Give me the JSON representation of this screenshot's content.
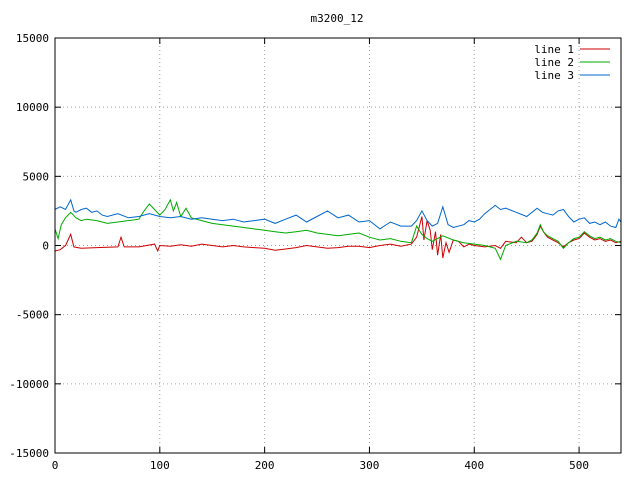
{
  "chart_data": {
    "type": "line",
    "title": "m3200_12",
    "xlabel": "",
    "ylabel": "",
    "xlim": [
      0,
      540
    ],
    "ylim": [
      -15000,
      15000
    ],
    "xticks": [
      0,
      100,
      200,
      300,
      400,
      500
    ],
    "yticks": [
      -15000,
      -10000,
      -5000,
      0,
      5000,
      10000,
      15000
    ],
    "grid": true,
    "legend_position": "top-right",
    "series": [
      {
        "name": "line 1",
        "color": "#cc0000",
        "points": [
          [
            0,
            -400
          ],
          [
            5,
            -300
          ],
          [
            10,
            0
          ],
          [
            15,
            800
          ],
          [
            18,
            -100
          ],
          [
            25,
            -200
          ],
          [
            40,
            -150
          ],
          [
            60,
            -100
          ],
          [
            63,
            600
          ],
          [
            66,
            -100
          ],
          [
            80,
            -100
          ],
          [
            95,
            100
          ],
          [
            98,
            -400
          ],
          [
            100,
            0
          ],
          [
            110,
            -50
          ],
          [
            120,
            50
          ],
          [
            130,
            -50
          ],
          [
            140,
            100
          ],
          [
            150,
            0
          ],
          [
            160,
            -100
          ],
          [
            170,
            0
          ],
          [
            180,
            -100
          ],
          [
            190,
            -150
          ],
          [
            200,
            -200
          ],
          [
            210,
            -350
          ],
          [
            220,
            -250
          ],
          [
            230,
            -150
          ],
          [
            240,
            0
          ],
          [
            250,
            -100
          ],
          [
            260,
            -200
          ],
          [
            270,
            -150
          ],
          [
            280,
            -50
          ],
          [
            290,
            -50
          ],
          [
            300,
            -150
          ],
          [
            310,
            0
          ],
          [
            320,
            100
          ],
          [
            330,
            -50
          ],
          [
            340,
            100
          ],
          [
            345,
            600
          ],
          [
            350,
            2100
          ],
          [
            352,
            400
          ],
          [
            355,
            1800
          ],
          [
            358,
            1100
          ],
          [
            360,
            -300
          ],
          [
            363,
            1000
          ],
          [
            365,
            -700
          ],
          [
            368,
            800
          ],
          [
            370,
            -900
          ],
          [
            373,
            200
          ],
          [
            376,
            -500
          ],
          [
            380,
            400
          ],
          [
            385,
            300
          ],
          [
            390,
            -100
          ],
          [
            395,
            100
          ],
          [
            400,
            0
          ],
          [
            410,
            -100
          ],
          [
            420,
            0
          ],
          [
            425,
            -200
          ],
          [
            430,
            300
          ],
          [
            440,
            200
          ],
          [
            445,
            600
          ],
          [
            450,
            200
          ],
          [
            455,
            300
          ],
          [
            460,
            800
          ],
          [
            463,
            1400
          ],
          [
            466,
            1000
          ],
          [
            470,
            600
          ],
          [
            475,
            400
          ],
          [
            480,
            200
          ],
          [
            485,
            -100
          ],
          [
            490,
            200
          ],
          [
            495,
            400
          ],
          [
            500,
            500
          ],
          [
            505,
            900
          ],
          [
            510,
            600
          ],
          [
            515,
            400
          ],
          [
            520,
            500
          ],
          [
            525,
            300
          ],
          [
            530,
            400
          ],
          [
            535,
            200
          ],
          [
            540,
            300
          ]
        ]
      },
      {
        "name": "line 2",
        "color": "#00aa00",
        "points": [
          [
            0,
            1200
          ],
          [
            3,
            500
          ],
          [
            6,
            1500
          ],
          [
            10,
            2000
          ],
          [
            15,
            2400
          ],
          [
            20,
            2000
          ],
          [
            25,
            1800
          ],
          [
            30,
            1900
          ],
          [
            40,
            1800
          ],
          [
            50,
            1600
          ],
          [
            60,
            1700
          ],
          [
            70,
            1800
          ],
          [
            80,
            1900
          ],
          [
            85,
            2500
          ],
          [
            90,
            3000
          ],
          [
            95,
            2600
          ],
          [
            100,
            2200
          ],
          [
            105,
            2600
          ],
          [
            110,
            3300
          ],
          [
            113,
            2500
          ],
          [
            116,
            3100
          ],
          [
            120,
            2100
          ],
          [
            125,
            2700
          ],
          [
            130,
            2000
          ],
          [
            140,
            1800
          ],
          [
            150,
            1600
          ],
          [
            160,
            1500
          ],
          [
            170,
            1400
          ],
          [
            180,
            1300
          ],
          [
            190,
            1200
          ],
          [
            200,
            1100
          ],
          [
            210,
            1000
          ],
          [
            220,
            900
          ],
          [
            230,
            1000
          ],
          [
            240,
            1100
          ],
          [
            250,
            900
          ],
          [
            260,
            800
          ],
          [
            270,
            700
          ],
          [
            280,
            800
          ],
          [
            290,
            900
          ],
          [
            300,
            600
          ],
          [
            310,
            400
          ],
          [
            320,
            500
          ],
          [
            330,
            300
          ],
          [
            340,
            200
          ],
          [
            345,
            1400
          ],
          [
            350,
            800
          ],
          [
            355,
            500
          ],
          [
            360,
            300
          ],
          [
            370,
            700
          ],
          [
            380,
            400
          ],
          [
            390,
            200
          ],
          [
            400,
            100
          ],
          [
            410,
            0
          ],
          [
            420,
            -200
          ],
          [
            425,
            -1000
          ],
          [
            430,
            0
          ],
          [
            440,
            300
          ],
          [
            450,
            200
          ],
          [
            455,
            400
          ],
          [
            460,
            900
          ],
          [
            463,
            1500
          ],
          [
            466,
            1000
          ],
          [
            470,
            700
          ],
          [
            475,
            500
          ],
          [
            480,
            300
          ],
          [
            485,
            -200
          ],
          [
            490,
            200
          ],
          [
            495,
            500
          ],
          [
            500,
            600
          ],
          [
            505,
            1000
          ],
          [
            510,
            700
          ],
          [
            515,
            500
          ],
          [
            520,
            600
          ],
          [
            525,
            400
          ],
          [
            530,
            500
          ],
          [
            535,
            300
          ],
          [
            540,
            200
          ]
        ]
      },
      {
        "name": "line 3",
        "color": "#0066cc",
        "points": [
          [
            0,
            2600
          ],
          [
            5,
            2800
          ],
          [
            10,
            2600
          ],
          [
            15,
            3300
          ],
          [
            18,
            2500
          ],
          [
            20,
            2400
          ],
          [
            25,
            2600
          ],
          [
            30,
            2700
          ],
          [
            35,
            2400
          ],
          [
            40,
            2500
          ],
          [
            45,
            2200
          ],
          [
            50,
            2100
          ],
          [
            60,
            2300
          ],
          [
            70,
            2000
          ],
          [
            80,
            2100
          ],
          [
            90,
            2300
          ],
          [
            100,
            2100
          ],
          [
            110,
            2000
          ],
          [
            120,
            2100
          ],
          [
            130,
            1900
          ],
          [
            140,
            2000
          ],
          [
            150,
            1900
          ],
          [
            160,
            1800
          ],
          [
            170,
            1900
          ],
          [
            180,
            1700
          ],
          [
            190,
            1800
          ],
          [
            200,
            1900
          ],
          [
            210,
            1600
          ],
          [
            220,
            1900
          ],
          [
            230,
            2200
          ],
          [
            240,
            1700
          ],
          [
            250,
            2100
          ],
          [
            260,
            2500
          ],
          [
            270,
            2000
          ],
          [
            280,
            2200
          ],
          [
            290,
            1700
          ],
          [
            300,
            1800
          ],
          [
            310,
            1200
          ],
          [
            320,
            1700
          ],
          [
            330,
            1400
          ],
          [
            340,
            1400
          ],
          [
            345,
            1800
          ],
          [
            350,
            2500
          ],
          [
            355,
            1800
          ],
          [
            360,
            1400
          ],
          [
            365,
            1600
          ],
          [
            370,
            2800
          ],
          [
            375,
            1500
          ],
          [
            380,
            1300
          ],
          [
            390,
            1500
          ],
          [
            395,
            1800
          ],
          [
            400,
            1700
          ],
          [
            405,
            1900
          ],
          [
            410,
            2300
          ],
          [
            420,
            2900
          ],
          [
            425,
            2600
          ],
          [
            430,
            2700
          ],
          [
            440,
            2400
          ],
          [
            450,
            2100
          ],
          [
            460,
            2700
          ],
          [
            465,
            2400
          ],
          [
            470,
            2300
          ],
          [
            475,
            2200
          ],
          [
            480,
            2500
          ],
          [
            485,
            2600
          ],
          [
            490,
            2100
          ],
          [
            495,
            1700
          ],
          [
            500,
            1900
          ],
          [
            505,
            2000
          ],
          [
            510,
            1600
          ],
          [
            515,
            1700
          ],
          [
            520,
            1500
          ],
          [
            525,
            1700
          ],
          [
            530,
            1400
          ],
          [
            535,
            1300
          ],
          [
            538,
            1900
          ],
          [
            540,
            1700
          ]
        ]
      }
    ]
  }
}
